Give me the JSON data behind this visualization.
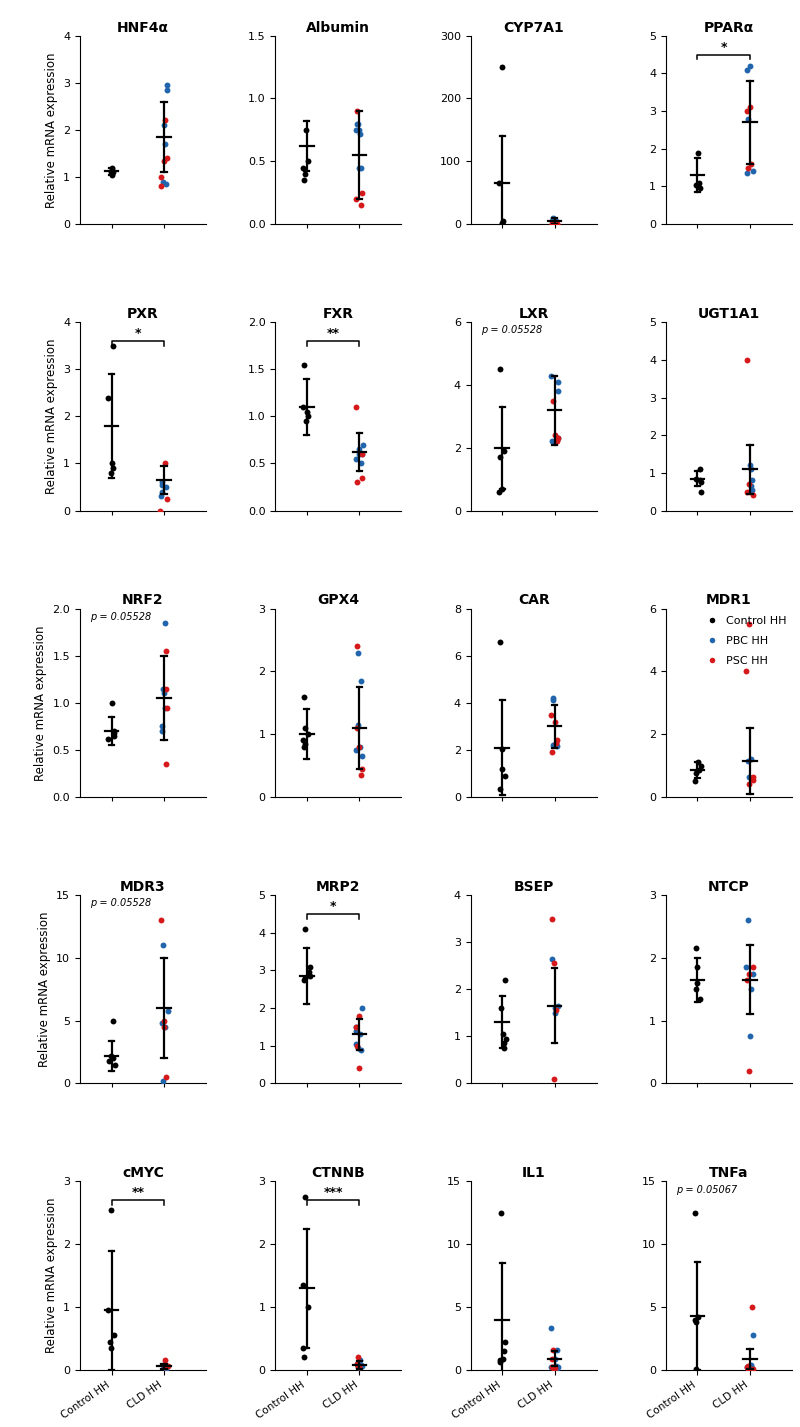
{
  "rows": [
    {
      "panels": [
        {
          "title": "HNF4α",
          "ylabel": "Relative mRNA expression",
          "ylim": [
            0,
            4
          ],
          "yticks": [
            0,
            1,
            2,
            3,
            4
          ],
          "control_points": [
            1.05,
            1.1,
            1.15,
            1.2,
            1.1
          ],
          "control_mean": 1.12,
          "control_sd": 0.08,
          "cld_points_blue": [
            1.7,
            2.1,
            2.85,
            2.95,
            0.9,
            0.85
          ],
          "cld_points_red": [
            1.35,
            2.2,
            1.4,
            1.0,
            0.8
          ],
          "cld_mean": 1.85,
          "cld_sd": 0.75,
          "sig": "",
          "pval": "",
          "show_xticks": false
        },
        {
          "title": "Albumin",
          "ylabel": "",
          "ylim": [
            0.0,
            1.5
          ],
          "yticks": [
            0.0,
            0.5,
            1.0,
            1.5
          ],
          "control_points": [
            0.75,
            0.5,
            0.45,
            0.4,
            0.35
          ],
          "control_mean": 0.62,
          "control_sd": 0.2,
          "cld_points_blue": [
            0.75,
            0.8,
            0.8,
            0.75,
            0.72,
            0.45,
            0.45
          ],
          "cld_points_red": [
            0.9,
            0.25,
            0.2,
            0.15
          ],
          "cld_mean": 0.55,
          "cld_sd": 0.35,
          "sig": "",
          "pval": "",
          "show_xticks": false
        },
        {
          "title": "CYP7A1",
          "ylabel": "",
          "ylim": [
            0,
            300
          ],
          "yticks": [
            0,
            100,
            200,
            300
          ],
          "control_points": [
            250,
            65,
            5,
            2,
            0
          ],
          "control_mean": 65,
          "control_sd": 75,
          "cld_points_blue": [
            10,
            5,
            5,
            5,
            3,
            0,
            0
          ],
          "cld_points_red": [
            0,
            0,
            0,
            0,
            0
          ],
          "cld_mean": 5,
          "cld_sd": 5,
          "sig": "",
          "pval": "",
          "show_xticks": false
        },
        {
          "title": "PPARα",
          "ylabel": "",
          "ylim": [
            0,
            5
          ],
          "yticks": [
            0,
            1,
            2,
            3,
            4,
            5
          ],
          "control_points": [
            1.9,
            1.1,
            1.05,
            1.0,
            0.95
          ],
          "control_mean": 1.3,
          "control_sd": 0.45,
          "cld_points_blue": [
            1.4,
            1.35,
            2.8,
            4.1,
            4.2
          ],
          "cld_points_red": [
            3.0,
            3.1,
            1.6,
            1.5
          ],
          "cld_mean": 2.7,
          "cld_sd": 1.1,
          "sig": "*",
          "pval": "",
          "show_xticks": false
        }
      ]
    },
    {
      "panels": [
        {
          "title": "PXR",
          "ylabel": "Relative mRNA expression",
          "ylim": [
            0,
            4
          ],
          "yticks": [
            0,
            1,
            2,
            3,
            4
          ],
          "control_points": [
            3.5,
            2.4,
            1.0,
            0.9,
            0.8
          ],
          "control_mean": 1.8,
          "control_sd": 1.1,
          "cld_points_blue": [
            0.6,
            0.55,
            0.5,
            0.4,
            0.3
          ],
          "cld_points_red": [
            1.0,
            0.25,
            0.0
          ],
          "cld_mean": 0.65,
          "cld_sd": 0.3,
          "sig": "*",
          "pval": "",
          "show_xticks": false
        },
        {
          "title": "FXR",
          "ylabel": "",
          "ylim": [
            0.0,
            2.0
          ],
          "yticks": [
            0.0,
            0.5,
            1.0,
            1.5,
            2.0
          ],
          "control_points": [
            1.55,
            1.1,
            1.05,
            1.0,
            0.95
          ],
          "control_mean": 1.1,
          "control_sd": 0.3,
          "cld_points_blue": [
            0.6,
            0.55,
            0.65,
            0.7,
            0.6,
            0.5
          ],
          "cld_points_red": [
            1.1,
            0.6,
            0.35,
            0.3
          ],
          "cld_mean": 0.62,
          "cld_sd": 0.2,
          "sig": "**",
          "pval": "",
          "show_xticks": false
        },
        {
          "title": "LXR",
          "ylabel": "",
          "ylim": [
            0,
            6
          ],
          "yticks": [
            0,
            2,
            4,
            6
          ],
          "control_points": [
            4.5,
            1.9,
            1.7,
            0.7,
            0.6
          ],
          "control_mean": 2.0,
          "control_sd": 1.3,
          "cld_points_blue": [
            4.1,
            3.8,
            4.3,
            2.3,
            2.2
          ],
          "cld_points_red": [
            3.5,
            2.4,
            2.3,
            2.2
          ],
          "cld_mean": 3.2,
          "cld_sd": 1.1,
          "sig": "",
          "pval": "p = 0.05528",
          "show_xticks": false
        },
        {
          "title": "UGT1A1",
          "ylabel": "",
          "ylim": [
            0,
            5
          ],
          "yticks": [
            0,
            1,
            2,
            3,
            4,
            5
          ],
          "control_points": [
            1.1,
            0.85,
            0.8,
            0.75,
            0.5
          ],
          "control_mean": 0.85,
          "control_sd": 0.2,
          "cld_points_blue": [
            1.2,
            1.1,
            0.8,
            0.65,
            0.55
          ],
          "cld_points_red": [
            4.0,
            0.7,
            0.5,
            0.4
          ],
          "cld_mean": 1.1,
          "cld_sd": 0.65,
          "sig": "",
          "pval": "",
          "show_xticks": false
        }
      ]
    },
    {
      "panels": [
        {
          "title": "NRF2",
          "ylabel": "Relative mRNA expression",
          "ylim": [
            0.0,
            2.0
          ],
          "yticks": [
            0.0,
            0.5,
            1.0,
            1.5,
            2.0
          ],
          "control_points": [
            1.0,
            0.7,
            0.68,
            0.65,
            0.62
          ],
          "control_mean": 0.7,
          "control_sd": 0.15,
          "cld_points_blue": [
            1.85,
            1.15,
            1.1,
            0.95,
            0.75,
            0.7
          ],
          "cld_points_red": [
            1.55,
            1.15,
            0.95,
            0.35
          ],
          "cld_mean": 1.05,
          "cld_sd": 0.45,
          "sig": "",
          "pval": "p = 0.05528",
          "show_xticks": false
        },
        {
          "title": "GPX4",
          "ylabel": "",
          "ylim": [
            0,
            3
          ],
          "yticks": [
            0,
            1,
            2,
            3
          ],
          "control_points": [
            1.6,
            1.1,
            1.0,
            0.9,
            0.85,
            0.8
          ],
          "control_mean": 1.0,
          "control_sd": 0.4,
          "cld_points_blue": [
            2.3,
            1.85,
            1.15,
            0.8,
            0.75,
            0.65
          ],
          "cld_points_red": [
            2.4,
            1.1,
            0.8,
            0.45,
            0.35
          ],
          "cld_mean": 1.1,
          "cld_sd": 0.65,
          "sig": "",
          "pval": "",
          "show_xticks": false
        },
        {
          "title": "CAR",
          "ylabel": "",
          "ylim": [
            0,
            8
          ],
          "yticks": [
            0,
            2,
            4,
            6,
            8
          ],
          "control_points": [
            6.6,
            2.05,
            1.2,
            0.9,
            0.35
          ],
          "control_mean": 2.1,
          "control_sd": 2.0,
          "cld_points_blue": [
            4.2,
            4.1,
            2.3,
            2.2,
            2.15
          ],
          "cld_points_red": [
            3.5,
            3.2,
            2.4,
            2.3,
            1.9
          ],
          "cld_mean": 3.0,
          "cld_sd": 0.9,
          "sig": "",
          "pval": "",
          "show_xticks": false
        },
        {
          "title": "MDR1",
          "ylabel": "",
          "ylim": [
            0,
            6
          ],
          "yticks": [
            0,
            2,
            4,
            6
          ],
          "control_points": [
            1.1,
            1.0,
            0.85,
            0.75,
            0.5
          ],
          "control_mean": 0.85,
          "control_sd": 0.25,
          "cld_points_blue": [
            1.2,
            1.15,
            0.65,
            0.6
          ],
          "cld_points_red": [
            5.5,
            4.0,
            0.65,
            0.55,
            0.4
          ],
          "cld_mean": 1.15,
          "cld_sd": 1.05,
          "sig": "",
          "pval": "",
          "show_xticks": false,
          "has_legend": true
        }
      ]
    },
    {
      "panels": [
        {
          "title": "MDR3",
          "ylabel": "Relative mRNA expression",
          "ylim": [
            0,
            15
          ],
          "yticks": [
            0,
            5,
            10,
            15
          ],
          "control_points": [
            5.0,
            2.2,
            2.0,
            1.8,
            1.5
          ],
          "control_mean": 2.2,
          "control_sd": 1.2,
          "cld_points_blue": [
            11.0,
            5.8,
            4.8,
            4.5,
            0.2
          ],
          "cld_points_red": [
            13.0,
            5.0,
            4.5,
            0.5
          ],
          "cld_mean": 6.0,
          "cld_sd": 4.0,
          "sig": "",
          "pval": "p = 0.05528",
          "show_xticks": false
        },
        {
          "title": "MRP2",
          "ylabel": "",
          "ylim": [
            0,
            5
          ],
          "yticks": [
            0,
            1,
            2,
            3,
            4,
            5
          ],
          "control_points": [
            4.1,
            3.1,
            2.95,
            2.85,
            2.8,
            2.75
          ],
          "control_mean": 2.85,
          "control_sd": 0.75,
          "cld_points_blue": [
            2.0,
            1.5,
            1.4,
            1.3,
            1.05,
            0.95,
            0.9
          ],
          "cld_points_red": [
            1.8,
            1.5,
            1.0,
            0.4
          ],
          "cld_mean": 1.3,
          "cld_sd": 0.4,
          "sig": "*",
          "pval": "",
          "show_xticks": false
        },
        {
          "title": "BSEP",
          "ylabel": "",
          "ylim": [
            0,
            4
          ],
          "yticks": [
            0,
            1,
            2,
            3,
            4
          ],
          "control_points": [
            2.2,
            1.6,
            1.05,
            0.95,
            0.85,
            0.75
          ],
          "control_mean": 1.3,
          "control_sd": 0.55,
          "cld_points_blue": [
            2.65,
            1.65,
            1.6,
            1.5
          ],
          "cld_points_red": [
            3.5,
            2.55,
            1.55,
            0.1
          ],
          "cld_mean": 1.65,
          "cld_sd": 0.8,
          "sig": "",
          "pval": "",
          "show_xticks": false
        },
        {
          "title": "NTCP",
          "ylabel": "",
          "ylim": [
            0,
            3
          ],
          "yticks": [
            0,
            1,
            2,
            3
          ],
          "control_points": [
            2.15,
            1.85,
            1.6,
            1.5,
            1.35
          ],
          "control_mean": 1.65,
          "control_sd": 0.35,
          "cld_points_blue": [
            2.6,
            1.85,
            1.75,
            1.5,
            0.75
          ],
          "cld_points_red": [
            1.85,
            1.75,
            1.65,
            0.2
          ],
          "cld_mean": 1.65,
          "cld_sd": 0.55,
          "sig": "",
          "pval": "",
          "show_xticks": false
        }
      ]
    },
    {
      "panels": [
        {
          "title": "cMYC",
          "ylabel": "Relative mRNA expression",
          "ylim": [
            0,
            3
          ],
          "yticks": [
            0,
            1,
            2,
            3
          ],
          "control_points": [
            2.55,
            0.95,
            0.55,
            0.45,
            0.35
          ],
          "control_mean": 0.95,
          "control_sd": 0.95,
          "cld_points_blue": [
            0.08,
            0.06,
            0.04,
            0.02
          ],
          "cld_points_red": [
            0.15,
            0.06,
            0.04
          ],
          "cld_mean": 0.06,
          "cld_sd": 0.04,
          "sig": "**",
          "pval": "",
          "show_xticks": true
        },
        {
          "title": "CTNNB",
          "ylabel": "",
          "ylim": [
            0,
            3
          ],
          "yticks": [
            0,
            1,
            2,
            3
          ],
          "control_points": [
            2.75,
            1.35,
            1.0,
            0.35,
            0.2
          ],
          "control_mean": 1.3,
          "control_sd": 0.95,
          "cld_points_blue": [
            0.15,
            0.1,
            0.08,
            0.06,
            0.05,
            0.04
          ],
          "cld_points_red": [
            0.2,
            0.1,
            0.06,
            0.04
          ],
          "cld_mean": 0.08,
          "cld_sd": 0.06,
          "sig": "***",
          "pval": "",
          "show_xticks": true
        },
        {
          "title": "IL1",
          "ylabel": "",
          "ylim": [
            0,
            15
          ],
          "yticks": [
            0,
            5,
            10,
            15
          ],
          "control_points": [
            12.5,
            2.25,
            1.5,
            0.9,
            0.75,
            0.6
          ],
          "control_mean": 4.0,
          "control_sd": 4.5,
          "cld_points_blue": [
            3.3,
            1.6,
            0.9,
            0.3,
            0.25,
            0.2,
            0.15
          ],
          "cld_points_red": [
            1.6,
            0.9,
            0.25,
            0.2,
            0.15,
            0.1
          ],
          "cld_mean": 0.9,
          "cld_sd": 0.6,
          "sig": "",
          "pval": "",
          "show_xticks": true
        },
        {
          "title": "TNFa",
          "ylabel": "",
          "ylim": [
            0,
            15
          ],
          "yticks": [
            0,
            5,
            10,
            15
          ],
          "control_points": [
            12.5,
            4.2,
            4.0,
            3.8,
            0.1
          ],
          "control_mean": 4.3,
          "control_sd": 4.3,
          "cld_points_blue": [
            2.8,
            0.4,
            0.25,
            0.2,
            0.15,
            0.1
          ],
          "cld_points_red": [
            5.0,
            0.35,
            0.2,
            0.1,
            0.05
          ],
          "cld_mean": 0.9,
          "cld_sd": 0.8,
          "sig": "",
          "pval": "p = 0.05067",
          "show_xticks": true
        }
      ]
    }
  ],
  "colors": {
    "control": "#000000",
    "pbc": "#2166ac",
    "psc": "#d6191b"
  },
  "marker_size": 18,
  "title_fontsize": 10,
  "tick_fontsize": 8,
  "ylabel_fontsize": 8.5
}
